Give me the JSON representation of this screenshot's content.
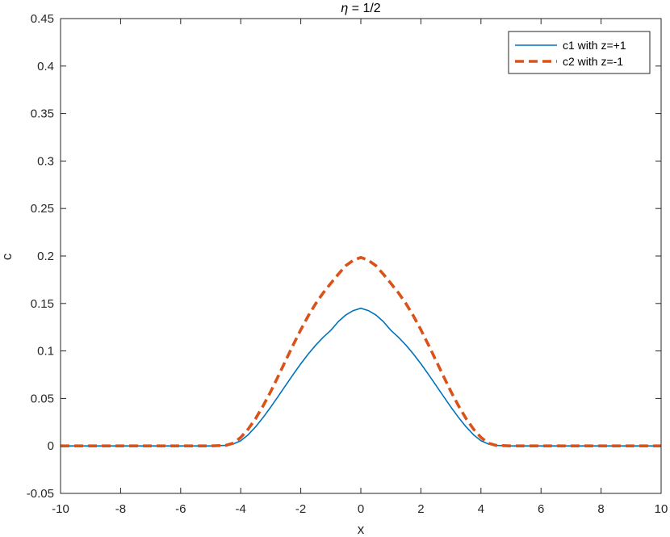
{
  "chart_data": {
    "type": "line",
    "title_symbol": "η",
    "title_rest": " = 1/2",
    "xlabel": "x",
    "ylabel": "c",
    "xlim": [
      -10,
      10
    ],
    "ylim": [
      -0.05,
      0.45
    ],
    "xticks": [
      -10,
      -8,
      -6,
      -4,
      -2,
      0,
      2,
      4,
      6,
      8,
      10
    ],
    "yticks": [
      "-0.05",
      "0",
      "0.05",
      "0.1",
      "0.15",
      "0.2",
      "0.25",
      "0.3",
      "0.35",
      "0.4",
      "0.45"
    ],
    "grid": false,
    "legend_position": "top-right",
    "x": [
      -10,
      -9,
      -8,
      -7,
      -6,
      -5,
      -4.5,
      -4.25,
      -4,
      -3.75,
      -3.5,
      -3.25,
      -3,
      -2.75,
      -2.5,
      -2.25,
      -2,
      -1.75,
      -1.5,
      -1.25,
      -1,
      -0.75,
      -0.5,
      -0.25,
      0,
      0.25,
      0.5,
      0.75,
      1,
      1.25,
      1.5,
      1.75,
      2,
      2.25,
      2.5,
      2.75,
      3,
      3.25,
      3.5,
      3.75,
      4,
      4.25,
      4.5,
      5,
      6,
      7,
      8,
      9,
      10
    ],
    "series": [
      {
        "name": "c1 with z=+1",
        "color": "#0072BD",
        "dash": "solid",
        "values": [
          0,
          0,
          0,
          0,
          0,
          0,
          0.0005,
          0.002,
          0.0055,
          0.0118,
          0.0203,
          0.0301,
          0.0409,
          0.0523,
          0.0639,
          0.0754,
          0.0865,
          0.0968,
          0.1062,
          0.1145,
          0.1217,
          0.1309,
          0.1379,
          0.1425,
          0.145,
          0.1425,
          0.1379,
          0.1309,
          0.1217,
          0.1145,
          0.1062,
          0.0968,
          0.0865,
          0.0754,
          0.0639,
          0.0523,
          0.0409,
          0.0301,
          0.0203,
          0.0118,
          0.0055,
          0.002,
          0.0005,
          0,
          0,
          0,
          0,
          0,
          0
        ]
      },
      {
        "name": "c2 with z=-1",
        "color": "#D95319",
        "dash": "dashed",
        "values": [
          0,
          0,
          0,
          0,
          0,
          0,
          0.0006,
          0.0028,
          0.0089,
          0.0178,
          0.029,
          0.0424,
          0.0573,
          0.0735,
          0.0901,
          0.1065,
          0.1223,
          0.137,
          0.15,
          0.1613,
          0.1712,
          0.1808,
          0.1898,
          0.1955,
          0.1985,
          0.1955,
          0.1898,
          0.1808,
          0.1712,
          0.1613,
          0.15,
          0.137,
          0.1223,
          0.1065,
          0.0901,
          0.0735,
          0.0573,
          0.0424,
          0.029,
          0.0178,
          0.0089,
          0.0028,
          0.0006,
          0,
          0,
          0,
          0,
          0,
          0
        ]
      }
    ]
  }
}
